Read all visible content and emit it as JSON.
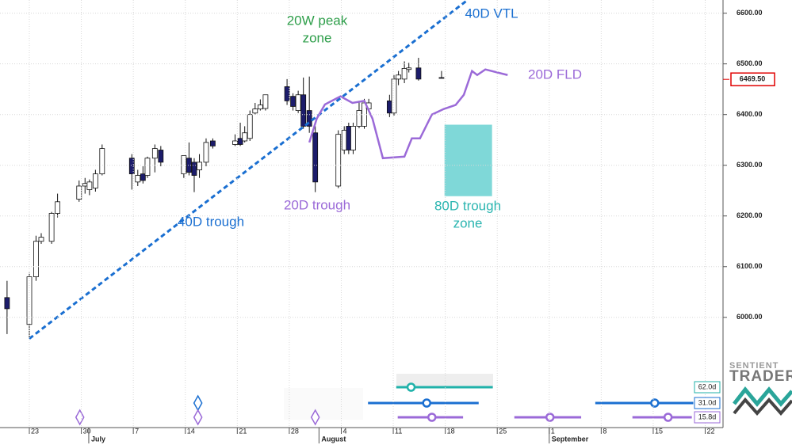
{
  "chart_data": {
    "type": "candlestick",
    "xlim": [
      -3.95,
      93.4
    ],
    "ylim": [
      5920,
      6626
    ],
    "grid": true,
    "xticks": [
      {
        "value": 0,
        "label": "23"
      },
      {
        "value": 7,
        "label": "30"
      },
      {
        "value": 14,
        "label": "7"
      },
      {
        "value": 21,
        "label": "14"
      },
      {
        "value": 28,
        "label": "21"
      },
      {
        "value": 35,
        "label": "28"
      },
      {
        "value": 42,
        "label": "4"
      },
      {
        "value": 49,
        "label": "11"
      },
      {
        "value": 56,
        "label": "18"
      },
      {
        "value": 63,
        "label": "25"
      },
      {
        "value": 70,
        "label": "1"
      },
      {
        "value": 77,
        "label": "8"
      },
      {
        "value": 84,
        "label": "15"
      },
      {
        "value": 91,
        "label": "22"
      }
    ],
    "month_ticks": [
      {
        "value": 8,
        "label": "July"
      },
      {
        "value": 39,
        "label": "August"
      },
      {
        "value": 70,
        "label": "September"
      }
    ],
    "yticks": [
      {
        "value": 6000,
        "label": "6000.00"
      },
      {
        "value": 6100,
        "label": "6100.00"
      },
      {
        "value": 6200,
        "label": "6200.00"
      },
      {
        "value": 6300,
        "label": "6300.00"
      },
      {
        "value": 6400,
        "label": "6400.00"
      },
      {
        "value": 6500,
        "label": "6500.00"
      },
      {
        "value": 6600,
        "label": "6600.00"
      }
    ],
    "candles": {
      "up_color": "#ffffff",
      "down_color": "#1c1c6b",
      "x": [
        -3.0,
        0,
        0.9,
        1.6,
        3.0,
        3.8,
        6.7,
        7.5,
        8.1,
        8.9,
        9.8,
        13.8,
        14.6,
        15.3,
        15.9,
        16.9,
        17.7,
        20.8,
        21.5,
        22.2,
        22.9,
        23.8,
        24.7,
        27.7,
        28.4,
        29.0,
        29.7,
        30.4,
        31.1,
        31.8,
        34.7,
        35.5,
        36.2,
        36.9,
        37.7,
        38.5,
        41.6,
        42.4,
        43.0,
        43.6,
        44.4,
        45.1,
        45.7,
        48.5,
        49.1,
        49.7,
        50.5,
        51.1,
        52.4,
        55.5
      ],
      "open": [
        6039,
        5986,
        6080,
        6150,
        6150,
        6205,
        6233,
        6259,
        6252,
        6255,
        6283,
        6314,
        6267,
        6283,
        6280,
        6314,
        6330,
        6283,
        6314,
        6306,
        6291,
        6306,
        6348,
        6341,
        6353,
        6348,
        6353,
        6403,
        6411,
        6412,
        6455,
        6436,
        6408,
        6439,
        6408,
        6364,
        6259,
        6330,
        6377,
        6330,
        6377,
        6377,
        6411,
        6427,
        6403,
        6470,
        6470,
        6489,
        6492,
        6473
      ],
      "high": [
        6072,
        6088,
        6161,
        6166,
        6208,
        6244,
        6270,
        6275,
        6272,
        6291,
        6341,
        6322,
        6291,
        6298,
        6317,
        6341,
        6338,
        6319,
        6345,
        6314,
        6322,
        6353,
        6353,
        6361,
        6384,
        6377,
        6408,
        6423,
        6430,
        6439,
        6470,
        6442,
        6447,
        6473,
        6475,
        6377,
        6369,
        6377,
        6384,
        6384,
        6427,
        6431,
        6431,
        6439,
        6478,
        6486,
        6505,
        6502,
        6512,
        6486
      ],
      "low": [
        5967,
        5958,
        6072,
        6145,
        6145,
        6197,
        6228,
        6244,
        6241,
        6248,
        6280,
        6252,
        6259,
        6264,
        6275,
        6286,
        6298,
        6275,
        6280,
        6247,
        6275,
        6298,
        6333,
        6338,
        6338,
        6345,
        6348,
        6400,
        6408,
        6408,
        6419,
        6408,
        6403,
        6372,
        6364,
        6247,
        6255,
        6322,
        6322,
        6322,
        6373,
        6372,
        6408,
        6395,
        6398,
        6458,
        6462,
        6483,
        6467,
        6472
      ],
      "close": [
        6017,
        6080,
        6150,
        6158,
        6205,
        6228,
        6259,
        6264,
        6267,
        6283,
        6333,
        6283,
        6280,
        6270,
        6314,
        6333,
        6306,
        6319,
        6286,
        6280,
        6306,
        6345,
        6338,
        6348,
        6341,
        6364,
        6400,
        6411,
        6419,
        6439,
        6427,
        6416,
        6439,
        6377,
        6377,
        6267,
        6361,
        6369,
        6330,
        6377,
        6408,
        6423,
        6423,
        6403,
        6470,
        6478,
        6491,
        6492,
        6470,
        6472
      ]
    },
    "last_price": {
      "value": 6469.5,
      "label": "6469.50",
      "color": "#e00000"
    },
    "lines": [
      {
        "name": "40D VTL",
        "color": "#1a6fd1",
        "dashed": true,
        "x": [
          0,
          59
        ],
        "values": [
          5958,
          6626
        ]
      },
      {
        "name": "20D FLD",
        "color": "#9b6ad8",
        "dashed": false,
        "x": [
          37.7,
          38.7,
          39.8,
          41.9,
          43.5,
          45.1,
          46.2,
          47.6,
          50.5,
          51.5,
          52.6,
          54.2,
          55.8,
          57.4,
          58.5,
          59.6,
          60.3,
          61.4,
          64.4
        ],
        "values": [
          6345,
          6392,
          6420,
          6436,
          6423,
          6427,
          6392,
          6314,
          6317,
          6353,
          6353,
          6400,
          6411,
          6419,
          6439,
          6486,
          6478,
          6489,
          6478
        ]
      }
    ],
    "zones": [
      {
        "xlim": [
          55.9,
          62.3
        ],
        "ylim": [
          6239,
          6380
        ],
        "color": "#7fd8d8"
      }
    ],
    "annotations": [
      {
        "text": [
          "20W peak",
          "zone"
        ],
        "color": "#2e9e4a"
      },
      {
        "text": [
          "40D trough"
        ],
        "color": "#1a6fd1"
      },
      {
        "text": [
          "20D trough"
        ],
        "color": "#9b6ad8"
      },
      {
        "text": [
          "80D trough",
          "zone"
        ],
        "color": "#2bb5b0"
      }
    ],
    "cycles": [
      {
        "label": "62.0d",
        "color": "#20b2aa",
        "troughs": [],
        "projections": [
          {
            "start": 49.4,
            "end": 62.4,
            "center": 51.4
          }
        ]
      },
      {
        "label": "31.0d",
        "color": "#1a6fd1",
        "troughs": [
          22.7
        ],
        "projections": [
          {
            "start": 45.6,
            "end": 60.5,
            "center": 53.5
          },
          {
            "start": 76.2,
            "end": 89.4,
            "center": 84.2
          }
        ]
      },
      {
        "label": "15.8d",
        "color": "#9b6ad8",
        "troughs": [
          6.8,
          22.7,
          38.5
        ],
        "projections": [
          {
            "start": 49.6,
            "end": 58.4,
            "center": 54.2
          },
          {
            "start": 65.3,
            "end": 74.3,
            "center": 70.1
          },
          {
            "start": 81.2,
            "end": 89.2,
            "center": 86.0
          }
        ]
      }
    ],
    "logo": [
      "SENTIENT",
      "TRADER"
    ]
  }
}
